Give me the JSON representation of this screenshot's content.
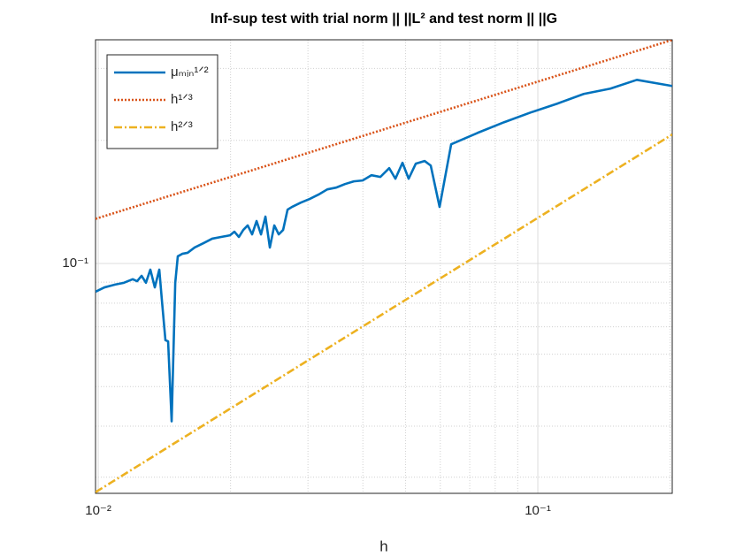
{
  "chart_data": {
    "type": "line",
    "title": "Inf-sup test with trial norm || ||L² and test norm || ||G",
    "x_label": "h",
    "xscale": "log",
    "yscale": "log",
    "grid": true,
    "legend": "northwest",
    "xlim": [
      0.00986,
      0.2022
    ],
    "ylim": [
      0.0274,
      0.3525
    ],
    "xticks": [
      {
        "value": 0.01,
        "label": "10⁻²"
      },
      {
        "value": 0.1,
        "label": "10⁻¹"
      }
    ],
    "yticks": [
      {
        "value": 0.1,
        "label": "10⁻¹"
      }
    ],
    "xminorticks": [
      0.02,
      0.03,
      0.04,
      0.05,
      0.06,
      0.07,
      0.08,
      0.09,
      0.2
    ],
    "yminorticks": [
      0.03,
      0.04,
      0.05,
      0.06,
      0.07,
      0.08,
      0.09,
      0.2,
      0.3
    ],
    "series": [
      {
        "name": "μₘᵢₙ¹ᐟ²",
        "color": "#0072BD",
        "style": "solid",
        "x": [
          0.00986,
          0.01033,
          0.01092,
          0.01144,
          0.01198,
          0.01226,
          0.01255,
          0.01284,
          0.01314,
          0.01345,
          0.01377,
          0.01396,
          0.01422,
          0.01442,
          0.01469,
          0.01497,
          0.01517,
          0.01553,
          0.01597,
          0.01657,
          0.01735,
          0.01817,
          0.01904,
          0.01994,
          0.02041,
          0.02089,
          0.02138,
          0.02188,
          0.02239,
          0.02292,
          0.02346,
          0.02401,
          0.02457,
          0.02515,
          0.02574,
          0.02634,
          0.02696,
          0.02759,
          0.02889,
          0.03026,
          0.0317,
          0.0332,
          0.03477,
          0.03642,
          0.03815,
          0.03995,
          0.04185,
          0.04383,
          0.04591,
          0.04743,
          0.04922,
          0.05084,
          0.05276,
          0.05526,
          0.05707,
          0.05978,
          0.06352,
          0.07297,
          0.08384,
          0.09636,
          0.1107,
          0.1272,
          0.1462,
          0.168,
          0.2022
        ],
        "values": [
          0.0853,
          0.0874,
          0.0888,
          0.0897,
          0.0915,
          0.0905,
          0.0933,
          0.0897,
          0.0966,
          0.0874,
          0.0966,
          0.0812,
          0.0649,
          0.0645,
          0.0411,
          0.0897,
          0.1041,
          0.1056,
          0.1062,
          0.1094,
          0.1121,
          0.115,
          0.1161,
          0.1172,
          0.1196,
          0.1161,
          0.1208,
          0.1239,
          0.1178,
          0.127,
          0.1178,
          0.1302,
          0.1094,
          0.1239,
          0.1178,
          0.1208,
          0.1354,
          0.1375,
          0.1409,
          0.1438,
          0.1474,
          0.1518,
          0.1533,
          0.1564,
          0.1588,
          0.1596,
          0.1644,
          0.1628,
          0.1711,
          0.1612,
          0.1763,
          0.1612,
          0.1754,
          0.1781,
          0.1736,
          0.1375,
          0.1957,
          0.2087,
          0.2216,
          0.2341,
          0.246,
          0.2598,
          0.2677,
          0.2813,
          0.2717
        ]
      },
      {
        "name": "h¹ᐟ³",
        "color": "#D95319",
        "style": "dotted",
        "x": [
          0.00986,
          0.2022
        ],
        "values": [
          0.1286,
          0.3522
        ]
      },
      {
        "name": "h²ᐟ³",
        "color": "#EDB120",
        "style": "dashdot",
        "x": [
          0.00986,
          0.2022
        ],
        "values": [
          0.02758,
          0.2068
        ]
      }
    ]
  }
}
